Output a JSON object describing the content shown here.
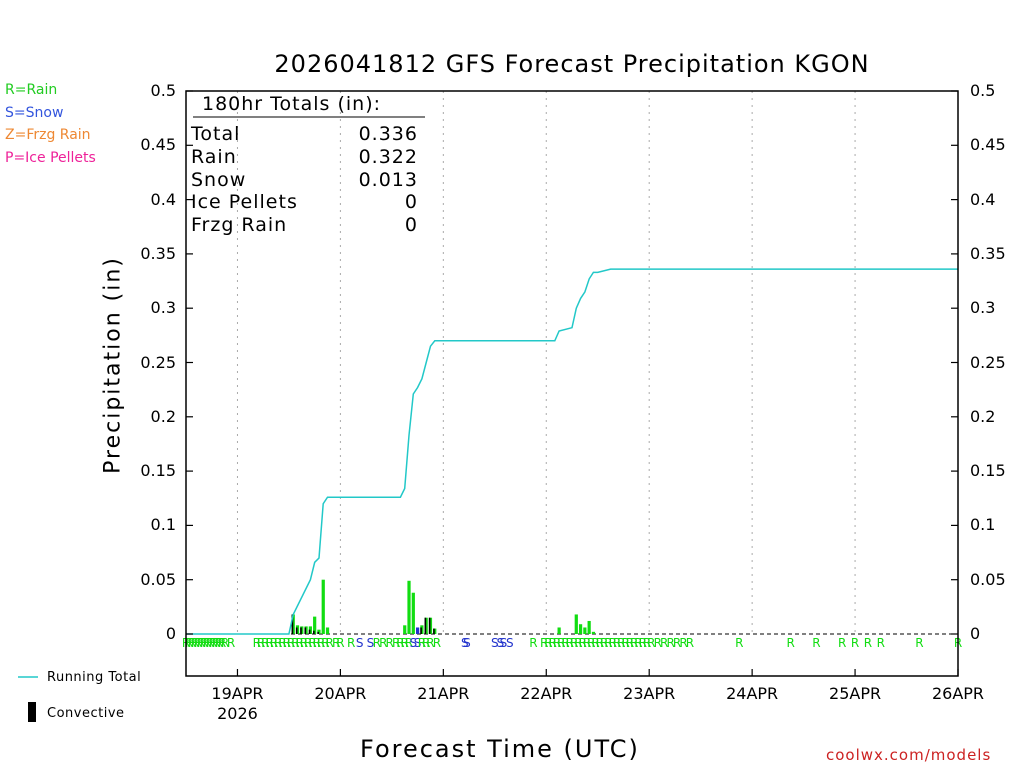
{
  "title": "2026041812 GFS Forecast Precipitation KGON",
  "legend_types": [
    {
      "label": "R=Rain",
      "color": "#22cc22"
    },
    {
      "label": "S=Snow",
      "color": "#3355dd"
    },
    {
      "label": "Z=Frzg Rain",
      "color": "#ee8833"
    },
    {
      "label": "P=Ice Pellets",
      "color": "#ee2299"
    }
  ],
  "totals": {
    "header": "180hr Totals (in):",
    "rows": [
      {
        "label": "Total",
        "value": "0.336"
      },
      {
        "label": "Rain",
        "value": "0.322"
      },
      {
        "label": "Snow",
        "value": "0.013"
      },
      {
        "label": "Ice Pellets",
        "value": "0"
      },
      {
        "label": "Frzg Rain",
        "value": "0"
      }
    ]
  },
  "bottom_legend": {
    "running_total": "Running Total",
    "convective": "Convective",
    "running_total_color": "#22c8c8",
    "convective_color": "#000000"
  },
  "credit": "coolwx.com/models",
  "colors": {
    "rain": "#11dd11",
    "snow": "#2233cc",
    "convective": "#000000",
    "running_total": "#22c8c8",
    "grid": "#aaaaaa"
  },
  "chart_data": {
    "type": "bar",
    "title": "2026041812 GFS Forecast Precipitation KGON",
    "xlabel": "Forecast Time (UTC)",
    "ylabel": "Precipitation (in)",
    "ylim": [
      0,
      0.5
    ],
    "xlim_hours": [
      0,
      180
    ],
    "hours_per_day": 24,
    "yticks": [
      "0",
      "0.05",
      "0.1",
      "0.15",
      "0.2",
      "0.25",
      "0.3",
      "0.35",
      "0.4",
      "0.45",
      "0.5"
    ],
    "xticks": [
      {
        "hour": 12,
        "label": "19APR",
        "sub": "2026"
      },
      {
        "hour": 36,
        "label": "20APR",
        "sub": ""
      },
      {
        "hour": 60,
        "label": "21APR",
        "sub": ""
      },
      {
        "hour": 84,
        "label": "22APR",
        "sub": ""
      },
      {
        "hour": 108,
        "label": "23APR",
        "sub": ""
      },
      {
        "hour": 132,
        "label": "24APR",
        "sub": ""
      },
      {
        "hour": 156,
        "label": "25APR",
        "sub": ""
      },
      {
        "hour": 180,
        "label": "26APR",
        "sub": ""
      }
    ],
    "series": [
      {
        "name": "Precipitation",
        "unit": "in",
        "points": [
          {
            "hour": 25,
            "value": 0.018,
            "convective": 0.018,
            "type": "R"
          },
          {
            "hour": 26,
            "value": 0.008,
            "convective": 0.006,
            "type": "R"
          },
          {
            "hour": 27,
            "value": 0.007,
            "convective": 0.006,
            "type": "R"
          },
          {
            "hour": 28,
            "value": 0.007,
            "convective": 0.006,
            "type": "R"
          },
          {
            "hour": 29,
            "value": 0.007,
            "convective": 0.004,
            "type": "R"
          },
          {
            "hour": 30,
            "value": 0.016,
            "convective": 0.003,
            "type": "R"
          },
          {
            "hour": 31,
            "value": 0.004,
            "convective": 0.002,
            "type": "R"
          },
          {
            "hour": 32,
            "value": 0.05,
            "convective": 0.0,
            "type": "R"
          },
          {
            "hour": 33,
            "value": 0.006,
            "convective": 0.0,
            "type": "R"
          },
          {
            "hour": 51,
            "value": 0.008,
            "convective": 0.0,
            "type": "R"
          },
          {
            "hour": 52,
            "value": 0.049,
            "convective": 0.0,
            "type": "R"
          },
          {
            "hour": 53,
            "value": 0.038,
            "convective": 0.0,
            "type": "R"
          },
          {
            "hour": 54,
            "value": 0.006,
            "convective": 0.0,
            "type": "S"
          },
          {
            "hour": 55,
            "value": 0.008,
            "convective": 0.006,
            "type": "R"
          },
          {
            "hour": 56,
            "value": 0.015,
            "convective": 0.015,
            "type": "R"
          },
          {
            "hour": 57,
            "value": 0.015,
            "convective": 0.015,
            "type": "R"
          },
          {
            "hour": 58,
            "value": 0.005,
            "convective": 0.005,
            "type": "R"
          },
          {
            "hour": 87,
            "value": 0.006,
            "convective": 0.0,
            "type": "R"
          },
          {
            "hour": 91,
            "value": 0.018,
            "convective": 0.0,
            "type": "R"
          },
          {
            "hour": 92,
            "value": 0.009,
            "convective": 0.0,
            "type": "R"
          },
          {
            "hour": 93,
            "value": 0.006,
            "convective": 0.0,
            "type": "R"
          },
          {
            "hour": 94,
            "value": 0.012,
            "convective": 0.0,
            "type": "R"
          },
          {
            "hour": 95,
            "value": 0.002,
            "convective": 0.0,
            "type": "R"
          }
        ]
      },
      {
        "name": "Running Total",
        "unit": "in",
        "points": [
          [
            0,
            0
          ],
          [
            24,
            0
          ],
          [
            25,
            0.018
          ],
          [
            29,
            0.05
          ],
          [
            30,
            0.066
          ],
          [
            31,
            0.07
          ],
          [
            32,
            0.12
          ],
          [
            33,
            0.126
          ],
          [
            50,
            0.126
          ],
          [
            51,
            0.134
          ],
          [
            52,
            0.183
          ],
          [
            53,
            0.221
          ],
          [
            54,
            0.227
          ],
          [
            55,
            0.235
          ],
          [
            56,
            0.25
          ],
          [
            57,
            0.265
          ],
          [
            58,
            0.27
          ],
          [
            86,
            0.27
          ],
          [
            87,
            0.279
          ],
          [
            90,
            0.282
          ],
          [
            91,
            0.3
          ],
          [
            92,
            0.309
          ],
          [
            93,
            0.315
          ],
          [
            94,
            0.327
          ],
          [
            95,
            0.333
          ],
          [
            96,
            0.333
          ],
          [
            99,
            0.336
          ],
          [
            180,
            0.336
          ]
        ]
      }
    ],
    "precip_type_markers": [
      {
        "hour": 0,
        "type": "R"
      },
      {
        "hour": 0.7,
        "type": "R"
      },
      {
        "hour": 1.4,
        "type": "R"
      },
      {
        "hour": 2.1,
        "type": "R"
      },
      {
        "hour": 2.8,
        "type": "R"
      },
      {
        "hour": 3.5,
        "type": "R"
      },
      {
        "hour": 4.2,
        "type": "R"
      },
      {
        "hour": 4.9,
        "type": "R"
      },
      {
        "hour": 5.6,
        "type": "R"
      },
      {
        "hour": 6.3,
        "type": "R"
      },
      {
        "hour": 7.0,
        "type": "R"
      },
      {
        "hour": 7.7,
        "type": "R"
      },
      {
        "hour": 8.4,
        "type": "R"
      },
      {
        "hour": 9.1,
        "type": "R"
      },
      {
        "hour": 10.5,
        "type": "R"
      },
      {
        "hour": 16.5,
        "type": "R"
      },
      {
        "hour": 17.5,
        "type": "R"
      },
      {
        "hour": 18.5,
        "type": "R"
      },
      {
        "hour": 19.5,
        "type": "R"
      },
      {
        "hour": 20.5,
        "type": "R"
      },
      {
        "hour": 21.5,
        "type": "R"
      },
      {
        "hour": 22.5,
        "type": "R"
      },
      {
        "hour": 23.5,
        "type": "R"
      },
      {
        "hour": 24.5,
        "type": "R"
      },
      {
        "hour": 25.5,
        "type": "R"
      },
      {
        "hour": 26.5,
        "type": "R"
      },
      {
        "hour": 27.5,
        "type": "R"
      },
      {
        "hour": 28.5,
        "type": "R"
      },
      {
        "hour": 29.5,
        "type": "R"
      },
      {
        "hour": 30.5,
        "type": "R"
      },
      {
        "hour": 31.5,
        "type": "R"
      },
      {
        "hour": 32.5,
        "type": "R"
      },
      {
        "hour": 33.5,
        "type": "R"
      },
      {
        "hour": 35,
        "type": "R"
      },
      {
        "hour": 36,
        "type": "R"
      },
      {
        "hour": 38.5,
        "type": "R"
      },
      {
        "hour": 40.5,
        "type": "S"
      },
      {
        "hour": 43,
        "type": "S"
      },
      {
        "hour": 44.5,
        "type": "R"
      },
      {
        "hour": 46,
        "type": "R"
      },
      {
        "hour": 47.5,
        "type": "R"
      },
      {
        "hour": 49,
        "type": "R"
      },
      {
        "hour": 50,
        "type": "R"
      },
      {
        "hour": 51,
        "type": "R"
      },
      {
        "hour": 52,
        "type": "R"
      },
      {
        "hour": 53,
        "type": "S"
      },
      {
        "hour": 54,
        "type": "S"
      },
      {
        "hour": 55,
        "type": "R"
      },
      {
        "hour": 56,
        "type": "R"
      },
      {
        "hour": 57,
        "type": "R"
      },
      {
        "hour": 58.5,
        "type": "R"
      },
      {
        "hour": 65,
        "type": "S"
      },
      {
        "hour": 65.5,
        "type": "S"
      },
      {
        "hour": 72,
        "type": "S"
      },
      {
        "hour": 73.3,
        "type": "S"
      },
      {
        "hour": 74,
        "type": "S"
      },
      {
        "hour": 75.5,
        "type": "S"
      },
      {
        "hour": 81,
        "type": "R"
      },
      {
        "hour": 83.5,
        "type": "R"
      },
      {
        "hour": 84.5,
        "type": "R"
      },
      {
        "hour": 85.5,
        "type": "R"
      },
      {
        "hour": 86.5,
        "type": "R"
      },
      {
        "hour": 87.5,
        "type": "R"
      },
      {
        "hour": 88.5,
        "type": "R"
      },
      {
        "hour": 89.5,
        "type": "R"
      },
      {
        "hour": 90.5,
        "type": "R"
      },
      {
        "hour": 91.5,
        "type": "R"
      },
      {
        "hour": 92.5,
        "type": "R"
      },
      {
        "hour": 93.5,
        "type": "R"
      },
      {
        "hour": 94.5,
        "type": "R"
      },
      {
        "hour": 95.5,
        "type": "R"
      },
      {
        "hour": 96.5,
        "type": "R"
      },
      {
        "hour": 97.5,
        "type": "R"
      },
      {
        "hour": 98.5,
        "type": "R"
      },
      {
        "hour": 99.5,
        "type": "R"
      },
      {
        "hour": 100.5,
        "type": "R"
      },
      {
        "hour": 101.5,
        "type": "R"
      },
      {
        "hour": 102.5,
        "type": "R"
      },
      {
        "hour": 103.5,
        "type": "R"
      },
      {
        "hour": 104.5,
        "type": "R"
      },
      {
        "hour": 105.5,
        "type": "R"
      },
      {
        "hour": 106.5,
        "type": "R"
      },
      {
        "hour": 107.5,
        "type": "R"
      },
      {
        "hour": 108.5,
        "type": "R"
      },
      {
        "hour": 110,
        "type": "R"
      },
      {
        "hour": 111.5,
        "type": "R"
      },
      {
        "hour": 113,
        "type": "R"
      },
      {
        "hour": 114.5,
        "type": "R"
      },
      {
        "hour": 116,
        "type": "R"
      },
      {
        "hour": 117.5,
        "type": "R"
      },
      {
        "hour": 129,
        "type": "R"
      },
      {
        "hour": 141,
        "type": "R"
      },
      {
        "hour": 147,
        "type": "R"
      },
      {
        "hour": 153,
        "type": "R"
      },
      {
        "hour": 156,
        "type": "R"
      },
      {
        "hour": 159,
        "type": "R"
      },
      {
        "hour": 162,
        "type": "R"
      },
      {
        "hour": 171,
        "type": "R"
      },
      {
        "hour": 180,
        "type": "R"
      }
    ]
  }
}
